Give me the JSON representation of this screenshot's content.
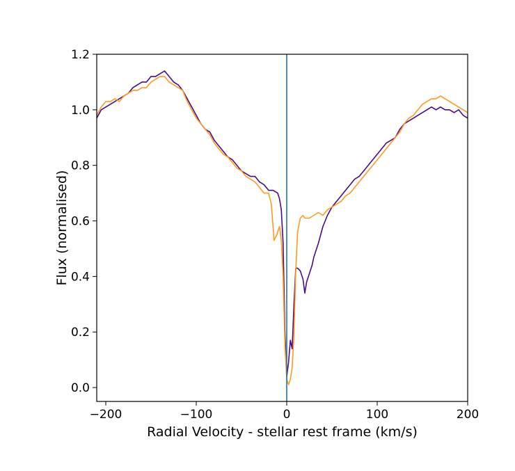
{
  "chart_data": {
    "type": "line",
    "xlabel": "Radial Velocity - stellar rest frame (km/s)",
    "ylabel": "Flux (normalised)",
    "xlim": [
      -210,
      200
    ],
    "ylim": [
      -0.05,
      1.2
    ],
    "xticks": [
      -200,
      -100,
      0,
      100,
      200
    ],
    "xtick_labels": [
      "−200",
      "−100",
      "0",
      "100",
      "200"
    ],
    "yticks": [
      0.0,
      0.2,
      0.4,
      0.6,
      0.8,
      1.0,
      1.2
    ],
    "ytick_labels": [
      "0.0",
      "0.2",
      "0.4",
      "0.6",
      "0.8",
      "1.0",
      "1.2"
    ],
    "grid": false,
    "vline": {
      "x": 0,
      "color": "#1f77b4"
    },
    "series": [
      {
        "color": "#4b0a8c",
        "x": [
          -210,
          -205,
          -200,
          -195,
          -190,
          -185,
          -180,
          -175,
          -170,
          -165,
          -160,
          -155,
          -150,
          -145,
          -140,
          -135,
          -130,
          -125,
          -120,
          -115,
          -110,
          -105,
          -100,
          -95,
          -90,
          -85,
          -80,
          -75,
          -70,
          -65,
          -60,
          -55,
          -50,
          -45,
          -40,
          -35,
          -30,
          -25,
          -20,
          -15,
          -10,
          -8,
          -6,
          -4,
          -2,
          0,
          2,
          4,
          6,
          8,
          10,
          12,
          15,
          18,
          20,
          22,
          25,
          28,
          30,
          35,
          40,
          45,
          50,
          55,
          60,
          65,
          70,
          75,
          80,
          85,
          90,
          95,
          100,
          105,
          110,
          115,
          120,
          125,
          130,
          135,
          140,
          145,
          150,
          155,
          160,
          165,
          170,
          175,
          180,
          185,
          190,
          195,
          200
        ],
        "values": [
          0.97,
          1.0,
          1.01,
          1.02,
          1.03,
          1.04,
          1.05,
          1.06,
          1.08,
          1.09,
          1.1,
          1.1,
          1.12,
          1.12,
          1.13,
          1.14,
          1.12,
          1.1,
          1.09,
          1.07,
          1.04,
          1.01,
          0.98,
          0.95,
          0.93,
          0.92,
          0.89,
          0.87,
          0.85,
          0.83,
          0.82,
          0.8,
          0.78,
          0.77,
          0.76,
          0.76,
          0.74,
          0.73,
          0.71,
          0.71,
          0.7,
          0.68,
          0.64,
          0.52,
          0.2,
          0.04,
          0.09,
          0.17,
          0.14,
          0.3,
          0.43,
          0.43,
          0.42,
          0.39,
          0.34,
          0.38,
          0.41,
          0.44,
          0.47,
          0.52,
          0.58,
          0.62,
          0.65,
          0.67,
          0.69,
          0.71,
          0.73,
          0.75,
          0.76,
          0.78,
          0.8,
          0.82,
          0.84,
          0.86,
          0.88,
          0.89,
          0.9,
          0.93,
          0.95,
          0.96,
          0.97,
          0.98,
          0.99,
          1.0,
          1.01,
          1.0,
          1.01,
          1.0,
          1.0,
          0.99,
          1.0,
          0.98,
          0.97
        ]
      },
      {
        "color": "#ff9a1a",
        "x": [
          -210,
          -205,
          -200,
          -195,
          -190,
          -185,
          -180,
          -175,
          -170,
          -165,
          -160,
          -155,
          -150,
          -145,
          -140,
          -135,
          -130,
          -125,
          -120,
          -115,
          -110,
          -105,
          -100,
          -95,
          -90,
          -85,
          -80,
          -75,
          -70,
          -65,
          -60,
          -55,
          -50,
          -45,
          -40,
          -35,
          -30,
          -25,
          -20,
          -17,
          -14,
          -11,
          -8,
          -6,
          -4,
          -2,
          0,
          2,
          4,
          6,
          8,
          10,
          12,
          15,
          18,
          20,
          25,
          30,
          35,
          40,
          45,
          50,
          55,
          60,
          65,
          70,
          75,
          80,
          85,
          90,
          95,
          100,
          105,
          110,
          115,
          120,
          125,
          130,
          135,
          140,
          145,
          150,
          155,
          160,
          165,
          170,
          175,
          180,
          185,
          190,
          195,
          200
        ],
        "values": [
          0.98,
          1.01,
          1.03,
          1.03,
          1.04,
          1.03,
          1.05,
          1.06,
          1.07,
          1.07,
          1.08,
          1.08,
          1.1,
          1.11,
          1.12,
          1.12,
          1.1,
          1.09,
          1.08,
          1.07,
          1.03,
          1.0,
          0.97,
          0.95,
          0.93,
          0.91,
          0.88,
          0.86,
          0.84,
          0.83,
          0.81,
          0.79,
          0.78,
          0.76,
          0.75,
          0.74,
          0.72,
          0.7,
          0.7,
          0.66,
          0.53,
          0.55,
          0.58,
          0.53,
          0.4,
          0.15,
          0.03,
          0.01,
          0.03,
          0.07,
          0.19,
          0.42,
          0.56,
          0.61,
          0.62,
          0.61,
          0.61,
          0.62,
          0.63,
          0.62,
          0.64,
          0.65,
          0.66,
          0.67,
          0.69,
          0.7,
          0.72,
          0.74,
          0.76,
          0.78,
          0.8,
          0.82,
          0.84,
          0.86,
          0.88,
          0.9,
          0.92,
          0.95,
          0.97,
          0.98,
          1.0,
          1.02,
          1.03,
          1.04,
          1.04,
          1.05,
          1.04,
          1.03,
          1.02,
          1.01,
          1.0,
          0.99
        ]
      }
    ]
  }
}
